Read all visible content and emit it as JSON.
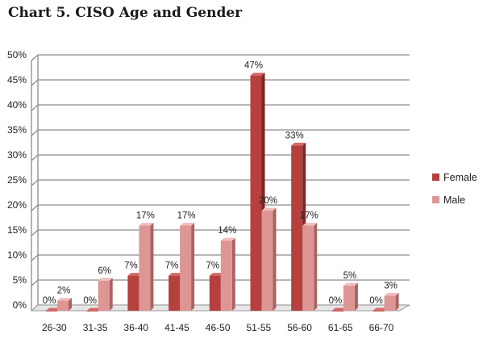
{
  "title": "Chart 5. CISO Age and Gender",
  "colors": {
    "female": "#b5403d",
    "female_dark": "#7c2624",
    "female_top": "#d46a67",
    "male": "#de9695",
    "male_dark": "#a86463",
    "male_top": "#efbdbc",
    "grid": "#8c8c8c",
    "floor": "#9a9a9a"
  },
  "chart_data": {
    "type": "bar",
    "categories": [
      "26-30",
      "31-35",
      "36-40",
      "41-45",
      "46-50",
      "51-55",
      "56-60",
      "61-65",
      "66-70"
    ],
    "series": [
      {
        "name": "Female",
        "values": [
          0,
          0,
          7,
          7,
          7,
          47,
          33,
          0,
          0
        ],
        "labels": [
          "0%",
          "0%",
          "7%",
          "7%",
          "7%",
          "47%",
          "33%",
          "0%",
          "0%"
        ]
      },
      {
        "name": "Male",
        "values": [
          2,
          6,
          17,
          17,
          14,
          20,
          17,
          5,
          3
        ],
        "labels": [
          "2%",
          "6%",
          "17%",
          "17%",
          "14%",
          "20%",
          "17%",
          "5%",
          "3%"
        ]
      }
    ],
    "ylim": [
      0,
      50
    ],
    "yticks": [
      "0%",
      "5%",
      "10%",
      "15%",
      "20%",
      "25%",
      "30%",
      "35%",
      "40%",
      "45%",
      "50%"
    ],
    "grid": true,
    "legend": "right"
  }
}
